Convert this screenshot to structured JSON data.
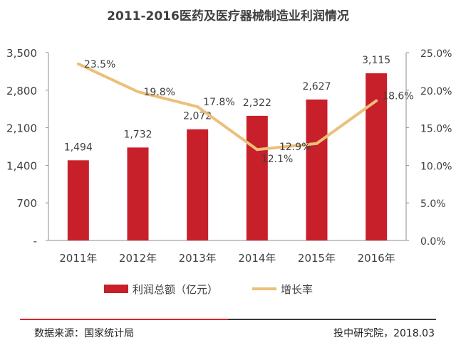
{
  "title": "2011-2016医药及医疗器械制造业利润情况",
  "colors": {
    "bar": "#C8202A",
    "line": "#EBC07A",
    "axis": "#8C8C8C",
    "text": "#404040",
    "footer_red": "#D7262E",
    "footer_dark": "#3A3A3A"
  },
  "chart_data": {
    "type": "bar",
    "categories": [
      "2011年",
      "2012年",
      "2013年",
      "2014年",
      "2015年",
      "2016年"
    ],
    "series": [
      {
        "name": "利润总额（亿元）",
        "type": "bar",
        "axis": "left",
        "values": [
          1494,
          1732,
          2072,
          2322,
          2627,
          3115
        ],
        "labels": [
          "1,494",
          "1,732",
          "2,072",
          "2,322",
          "2,627",
          "3,115"
        ]
      },
      {
        "name": "增长率",
        "type": "line",
        "axis": "right",
        "values": [
          23.5,
          19.8,
          17.8,
          12.1,
          12.9,
          18.6
        ],
        "labels": [
          "23.5%",
          "19.8%",
          "17.8%",
          "12.1%",
          "12.9%",
          "18.6%"
        ]
      }
    ],
    "left_axis": {
      "min": 0,
      "max": 3500,
      "ticks": [
        0,
        700,
        1400,
        2100,
        2800,
        3500
      ],
      "tick_labels": [
        "-",
        "700",
        "1,400",
        "2,100",
        "2,800",
        "3,500"
      ]
    },
    "right_axis": {
      "min": 0,
      "max": 25,
      "ticks": [
        0,
        5,
        10,
        15,
        20,
        25
      ],
      "tick_labels": [
        "0.0%",
        "5.0%",
        "10.0%",
        "15.0%",
        "20.0%",
        "25.0%"
      ]
    },
    "legend_position": "bottom",
    "grid": false
  },
  "footer": {
    "source": "数据来源：国家统计局",
    "credit": "投中研究院，2018.03"
  }
}
